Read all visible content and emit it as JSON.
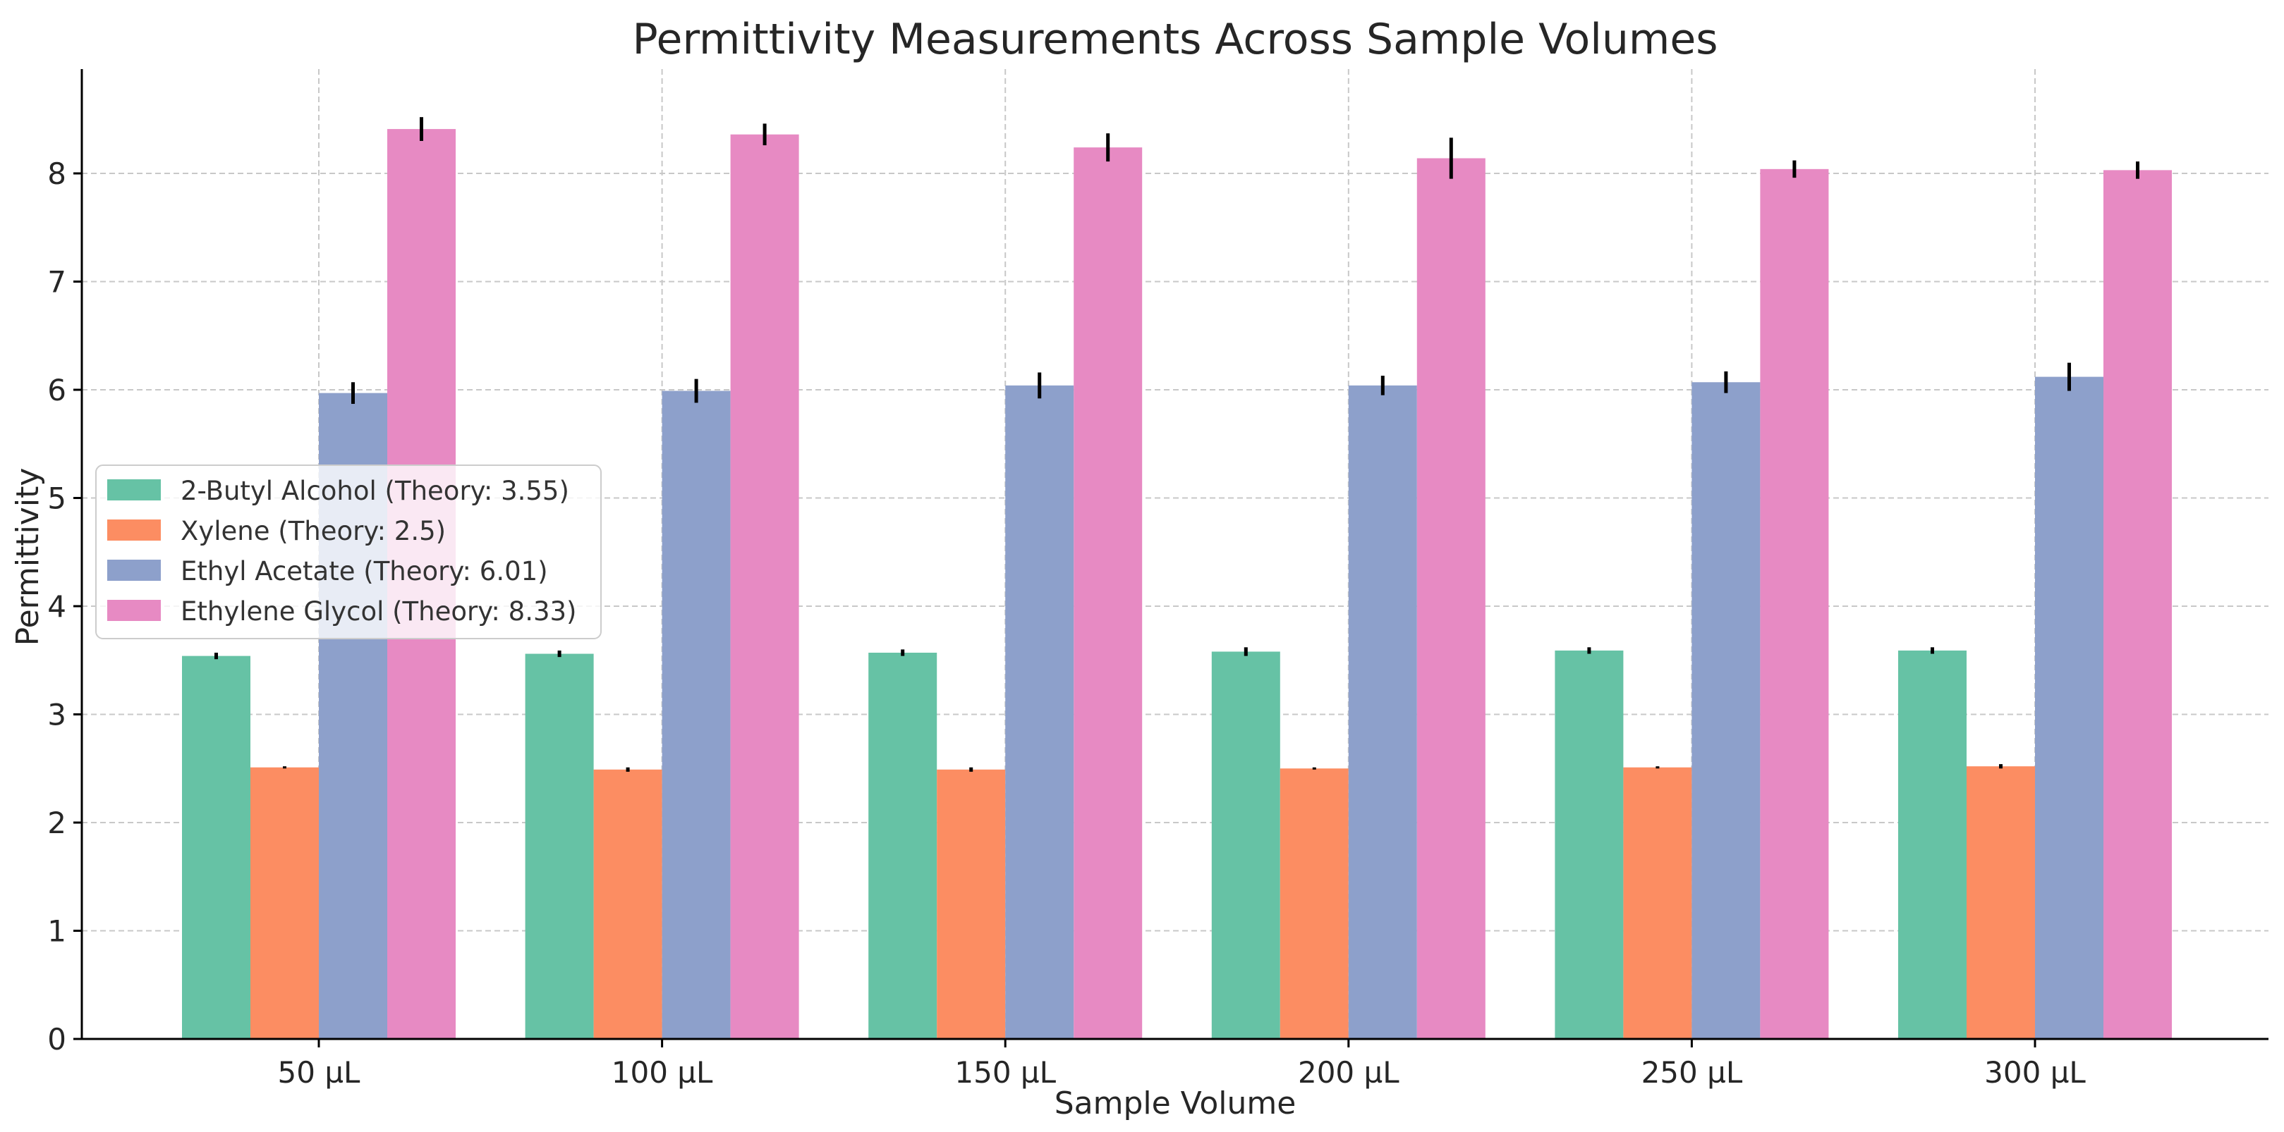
{
  "chart_data": {
    "type": "bar",
    "title": "Permittivity Measurements Across Sample Volumes",
    "xlabel": "Sample Volume",
    "ylabel": "Permittivity",
    "ylim": [
      0,
      8.95
    ],
    "yticks": [
      "0",
      "1",
      "2",
      "3",
      "4",
      "5",
      "6",
      "7",
      "8"
    ],
    "grid": true,
    "legend_position": "center-left",
    "categories": [
      "50 µL",
      "100 µL",
      "150 µL",
      "200 µL",
      "250 µL",
      "300 µL"
    ],
    "series": [
      {
        "name": "2-Butyl Alcohol (Theory: 3.55)",
        "color": "#66c2a5",
        "values": [
          3.54,
          3.56,
          3.57,
          3.58,
          3.59,
          3.59
        ],
        "errors": [
          0.03,
          0.03,
          0.03,
          0.04,
          0.03,
          0.03
        ]
      },
      {
        "name": "Xylene (Theory: 2.5)",
        "color": "#fc8d62",
        "values": [
          2.51,
          2.49,
          2.49,
          2.5,
          2.51,
          2.52
        ],
        "errors": [
          0.01,
          0.02,
          0.02,
          0.01,
          0.01,
          0.02
        ]
      },
      {
        "name": "Ethyl Acetate (Theory: 6.01)",
        "color": "#8da0cb",
        "values": [
          5.97,
          5.99,
          6.04,
          6.04,
          6.07,
          6.12
        ],
        "errors": [
          0.1,
          0.11,
          0.12,
          0.09,
          0.1,
          0.13
        ]
      },
      {
        "name": "Ethylene Glycol (Theory: 8.33)",
        "color": "#e78ac3",
        "values": [
          8.41,
          8.36,
          8.24,
          8.14,
          8.04,
          8.03
        ],
        "errors": [
          0.11,
          0.1,
          0.13,
          0.19,
          0.08,
          0.08
        ]
      }
    ]
  }
}
